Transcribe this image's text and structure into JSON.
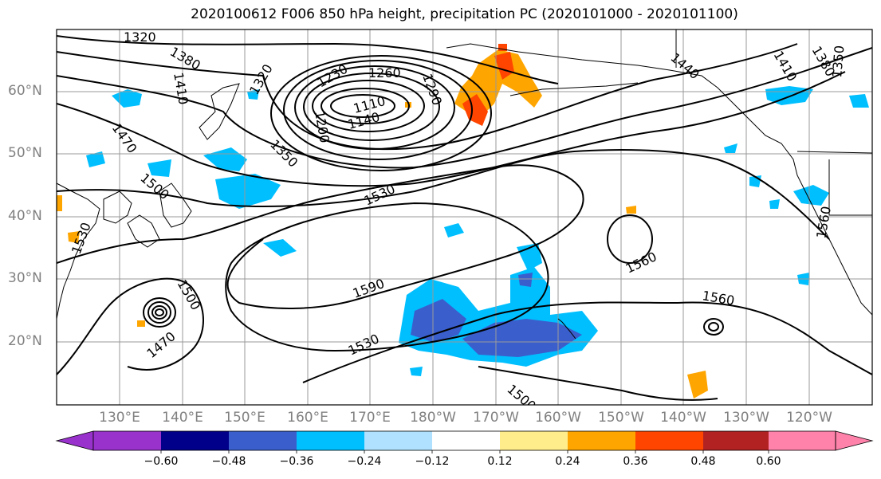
{
  "title": "2020100612 F006 850 hPa height, precipitation PC (2020101000 - 2020101100)",
  "lat_labels": [
    "60°N",
    "50°N",
    "40°N",
    "30°N",
    "20°N"
  ],
  "lon_labels": [
    "130°E",
    "140°E",
    "150°E",
    "160°E",
    "170°E",
    "180°W",
    "170°W",
    "160°W",
    "150°W",
    "140°W",
    "130°W",
    "120°W"
  ],
  "colorbar": {
    "ticks": [
      "−0.60",
      "−0.48",
      "−0.36",
      "−0.24",
      "−0.12",
      "0.12",
      "0.24",
      "0.36",
      "0.48",
      "0.60"
    ],
    "colors": [
      "#9932cc",
      "#00008b",
      "#3a5fcd",
      "#00bfff",
      "#b0e2ff",
      "#ffffff",
      "#ffec8b",
      "#ffa500",
      "#ff4500",
      "#b22222",
      "#ff82ab"
    ]
  },
  "contour_labels": [
    "1320",
    "1380",
    "1410",
    "1320",
    "1230",
    "1260",
    "1290",
    "1110",
    "1140",
    "1200",
    "1350",
    "1470",
    "1500",
    "1530",
    "1440",
    "1410",
    "1380",
    "1350",
    "1560",
    "1590",
    "1560",
    "1560",
    "1500",
    "1470",
    "1530",
    "1530",
    "1500"
  ]
}
